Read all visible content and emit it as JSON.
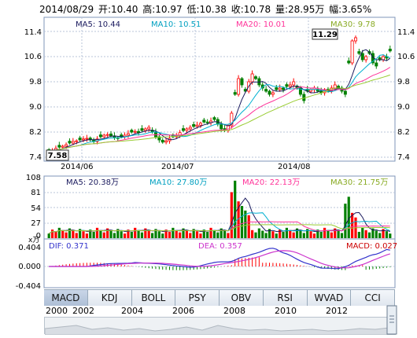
{
  "header": {
    "date": "2014/08/29",
    "open": "开:10.40",
    "high": "高:10.97",
    "low": "低:10.38",
    "close": "收:10.78",
    "volume": "量:28.95万",
    "change": "幅:3.65%"
  },
  "price_panel": {
    "ma5": "MA5: 10.44",
    "ma10": "MA10: 10.51",
    "ma20": "MA20: 10.01",
    "ma30": "MA30: 9.78",
    "max_label": "11.29",
    "min_label": "7.58",
    "y_ticks": [
      "11.4",
      "10.6",
      "9.8",
      "9.0",
      "8.2",
      "7.4"
    ],
    "x_labels": [
      "2014/06",
      "2014/07",
      "2014/08"
    ]
  },
  "volume_panel": {
    "ma5": "MA5: 20.38万",
    "ma10": "MA10: 27.80万",
    "ma20": "MA20: 22.13万",
    "ma30": "MA30: 21.75万",
    "y_ticks": [
      "108",
      "81",
      "54",
      "27",
      "0"
    ],
    "unit": "x万"
  },
  "macd_panel": {
    "dif": "DIF: 0.371",
    "dea": "DEA: 0.357",
    "macd": "MACD: 0.027",
    "y_ticks": [
      "0.404",
      "0.000",
      "-0.404"
    ]
  },
  "tabs": [
    "MACD",
    "KDJ",
    "BOLL",
    "PSY",
    "OBV",
    "RSI",
    "WVAD",
    "CCI"
  ],
  "active_tab": "MACD",
  "years": [
    "2000",
    "2002",
    "2004",
    "2006",
    "2008",
    "2010",
    "2012"
  ],
  "colors": {
    "up": "#ff0000",
    "down": "#008000",
    "ma5": "#1a1a5e",
    "ma10": "#00b0d0",
    "ma20": "#ff3399",
    "ma30": "#99cc33",
    "dif": "#3333cc",
    "dea": "#cc33cc",
    "grid": "#b8c4d8",
    "border": "#7f95b8"
  },
  "chart_data": {
    "type": "candlestick",
    "series": [
      {
        "name": "close",
        "values": [
          7.58,
          7.62,
          7.68,
          7.72,
          7.75,
          7.8,
          7.85,
          7.9,
          7.92,
          7.95,
          7.98,
          8.0,
          7.95,
          7.9,
          7.98,
          8.05,
          8.1,
          8.12,
          8.08,
          8.02,
          8.0,
          8.05,
          8.1,
          8.15,
          8.2,
          8.22,
          8.18,
          8.25,
          8.3,
          8.35,
          8.2,
          8.05,
          7.95,
          7.88,
          7.92,
          8.0,
          8.05,
          8.1,
          8.18,
          8.25,
          8.3,
          8.35,
          8.38,
          8.42,
          8.48,
          8.52,
          8.5,
          8.55,
          8.6,
          8.45,
          8.3,
          8.25,
          8.4,
          8.8,
          9.4,
          9.9,
          9.7,
          9.5,
          9.8,
          10.05,
          9.9,
          9.7,
          9.6,
          9.5,
          9.4,
          9.45,
          9.55,
          9.6,
          9.55,
          9.65,
          9.7,
          9.8,
          9.6,
          9.4,
          9.2,
          9.5,
          9.55,
          9.6,
          9.5,
          9.45,
          9.55,
          9.5,
          9.6,
          9.7,
          9.6,
          9.5,
          9.4,
          10.4,
          11.1,
          11.2,
          10.7,
          10.5,
          10.6,
          10.7,
          10.4,
          10.3,
          10.5,
          10.6,
          10.55,
          10.78
        ]
      }
    ],
    "ylim": [
      7.4,
      11.4
    ]
  }
}
